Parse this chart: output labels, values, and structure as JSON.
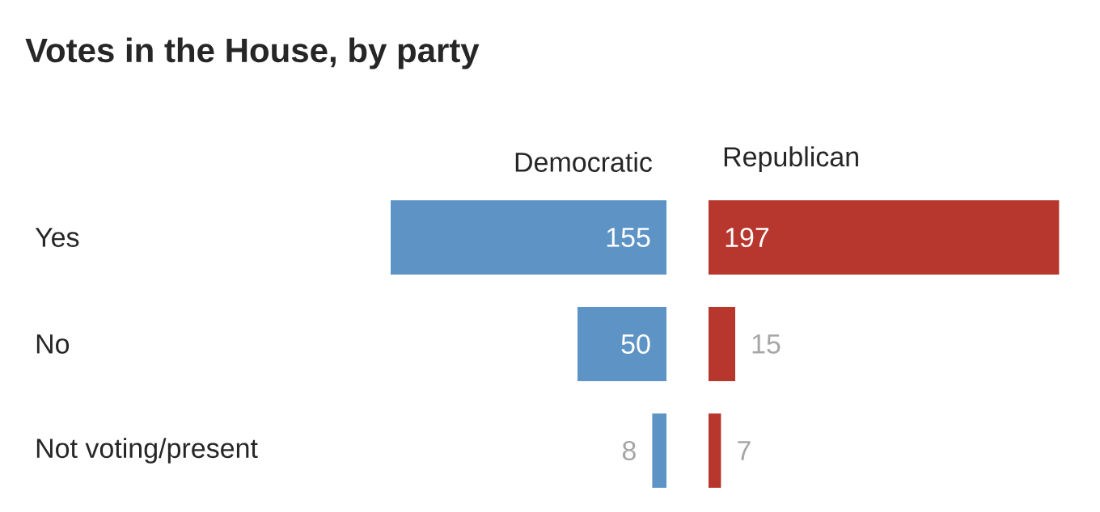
{
  "chart_data": [
    {
      "type": "bar",
      "orientation": "horizontal",
      "title": "Votes in the House, by party",
      "categories": [
        "Yes",
        "No",
        "Not voting/present"
      ],
      "series": [
        {
          "name": "Democratic",
          "color": "#5e93c5",
          "values": [
            155,
            50,
            8
          ]
        }
      ],
      "data_labels": true
    },
    {
      "type": "bar",
      "orientation": "horizontal",
      "categories": [
        null,
        null,
        null
      ],
      "series": [
        {
          "name": "Republican",
          "color": "#b7362d",
          "values": [
            197,
            15,
            7
          ]
        }
      ],
      "data_labels": true
    }
  ]
}
